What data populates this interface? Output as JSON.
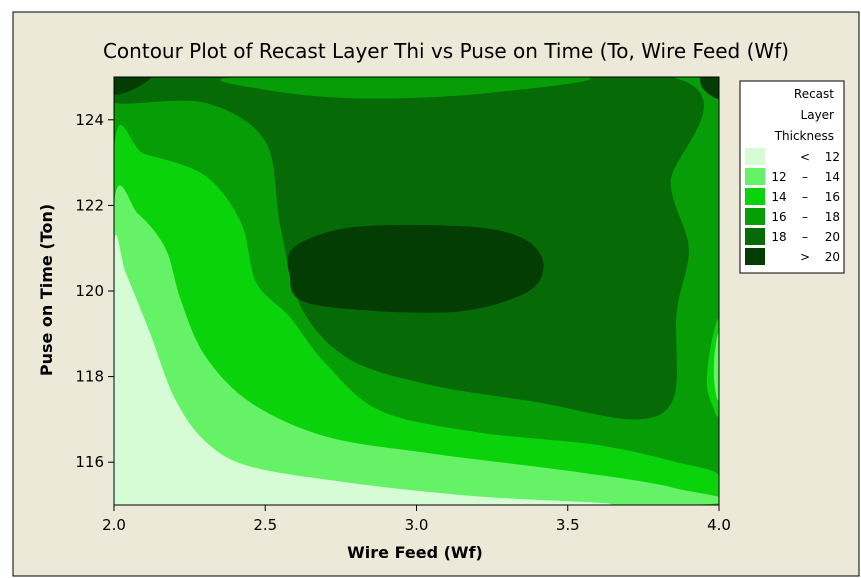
{
  "chart_data": {
    "type": "contour",
    "title": "Contour Plot of Recast Layer Thi vs Puse on Time (To, Wire Feed (Wf)",
    "xlabel": "Wire Feed (Wf)",
    "ylabel": "Puse on Time (Ton)",
    "xlim": [
      2.0,
      4.0
    ],
    "ylim": [
      115,
      125
    ],
    "x_ticks": [
      "2.0",
      "2.5",
      "3.0",
      "3.5",
      "4.0"
    ],
    "y_ticks": [
      "116",
      "118",
      "120",
      "122",
      "124"
    ],
    "legend": {
      "title_lines": [
        "Recast",
        "Layer",
        "Thickness"
      ],
      "placement": "right",
      "entries": [
        {
          "lo": "",
          "sep": "<",
          "hi": "12",
          "color": "#d6fcd6"
        },
        {
          "lo": "12",
          "sep": "–",
          "hi": "14",
          "color": "#66f266"
        },
        {
          "lo": "14",
          "sep": "–",
          "hi": "16",
          "color": "#0bd30b"
        },
        {
          "lo": "16",
          "sep": "–",
          "hi": "18",
          "color": "#079d07"
        },
        {
          "lo": "18",
          "sep": "–",
          "hi": "20",
          "color": "#066a06"
        },
        {
          "lo": "",
          "sep": ">",
          "hi": "20",
          "color": "#043d04"
        }
      ]
    },
    "regions": [
      {
        "level": "16 – 18",
        "points": [
          [
            2.0,
            125
          ],
          [
            4.0,
            125
          ],
          [
            4.0,
            115
          ],
          [
            2.0,
            115
          ]
        ]
      },
      {
        "level": "18 – 20",
        "points": [
          [
            2.26,
            125
          ],
          [
            3.84,
            125
          ],
          [
            3.84,
            122.5
          ],
          [
            3.9,
            121
          ],
          [
            3.86,
            119.5
          ],
          [
            3.85,
            117.5
          ],
          [
            3.72,
            117.0
          ],
          [
            3.4,
            117.4
          ],
          [
            3.05,
            117.8
          ],
          [
            2.78,
            118.4
          ],
          [
            2.62,
            119.6
          ],
          [
            2.55,
            121.5
          ],
          [
            2.5,
            123.5
          ],
          [
            2.3,
            124.4
          ],
          [
            2.0,
            124.4
          ],
          [
            2.0,
            125
          ]
        ]
      },
      {
        "level": "16 – 18",
        "points": [
          [
            2.42,
            125
          ],
          [
            3.55,
            125
          ],
          [
            3.2,
            124.6
          ],
          [
            2.8,
            124.5
          ],
          [
            2.5,
            124.7
          ]
        ]
      },
      {
        "level": "> 20",
        "points": [
          [
            2.6,
            121.05
          ],
          [
            2.8,
            121.5
          ],
          [
            3.18,
            121.5
          ],
          [
            3.36,
            121.2
          ],
          [
            3.42,
            120.6
          ],
          [
            3.36,
            119.95
          ],
          [
            3.1,
            119.5
          ],
          [
            2.65,
            119.7
          ],
          [
            2.58,
            120.4
          ]
        ]
      },
      {
        "level": "> 20",
        "points": [
          [
            2.0,
            125
          ],
          [
            2.12,
            125
          ],
          [
            2.06,
            124.7
          ],
          [
            2.0,
            124.6
          ]
        ]
      },
      {
        "level": "> 20",
        "points": [
          [
            3.94,
            125
          ],
          [
            4.0,
            125
          ],
          [
            4.0,
            124.5
          ],
          [
            3.95,
            124.7
          ]
        ]
      },
      {
        "level": "14 – 16",
        "points": [
          [
            2.0,
            123.3
          ],
          [
            2.1,
            123.2
          ],
          [
            2.3,
            122.7
          ],
          [
            2.42,
            121.6
          ],
          [
            2.47,
            120.2
          ],
          [
            2.58,
            119.4
          ],
          [
            2.7,
            118.3
          ],
          [
            2.88,
            117.2
          ],
          [
            3.2,
            116.7
          ],
          [
            3.6,
            116.4
          ],
          [
            3.86,
            116.0
          ],
          [
            4.0,
            115.7
          ],
          [
            4.0,
            115
          ],
          [
            2.0,
            115
          ]
        ]
      },
      {
        "level": "14 – 16",
        "points": [
          [
            4.0,
            119.3
          ],
          [
            3.97,
            118.6
          ],
          [
            3.96,
            117.8
          ],
          [
            3.98,
            117.3
          ],
          [
            4.0,
            117.2
          ]
        ]
      },
      {
        "level": "12 – 14",
        "points": [
          [
            4.0,
            119.0
          ],
          [
            3.985,
            118.5
          ],
          [
            3.985,
            117.8
          ],
          [
            4.0,
            117.5
          ]
        ]
      },
      {
        "level": "12 – 14",
        "points": [
          [
            2.0,
            122.0
          ],
          [
            2.08,
            121.8
          ],
          [
            2.17,
            121.0
          ],
          [
            2.22,
            119.8
          ],
          [
            2.3,
            118.5
          ],
          [
            2.45,
            117.4
          ],
          [
            2.7,
            116.6
          ],
          [
            3.05,
            116.2
          ],
          [
            3.5,
            115.8
          ],
          [
            3.85,
            115.4
          ],
          [
            3.9,
            115
          ],
          [
            2.0,
            115
          ]
        ]
      },
      {
        "level": "< 12",
        "points": [
          [
            2.0,
            121.0
          ],
          [
            2.04,
            120.4
          ],
          [
            2.12,
            119.0
          ],
          [
            2.2,
            117.5
          ],
          [
            2.3,
            116.5
          ],
          [
            2.45,
            115.9
          ],
          [
            2.8,
            115.5
          ],
          [
            3.2,
            115.2
          ],
          [
            3.6,
            115
          ],
          [
            2.0,
            115
          ]
        ]
      }
    ]
  }
}
